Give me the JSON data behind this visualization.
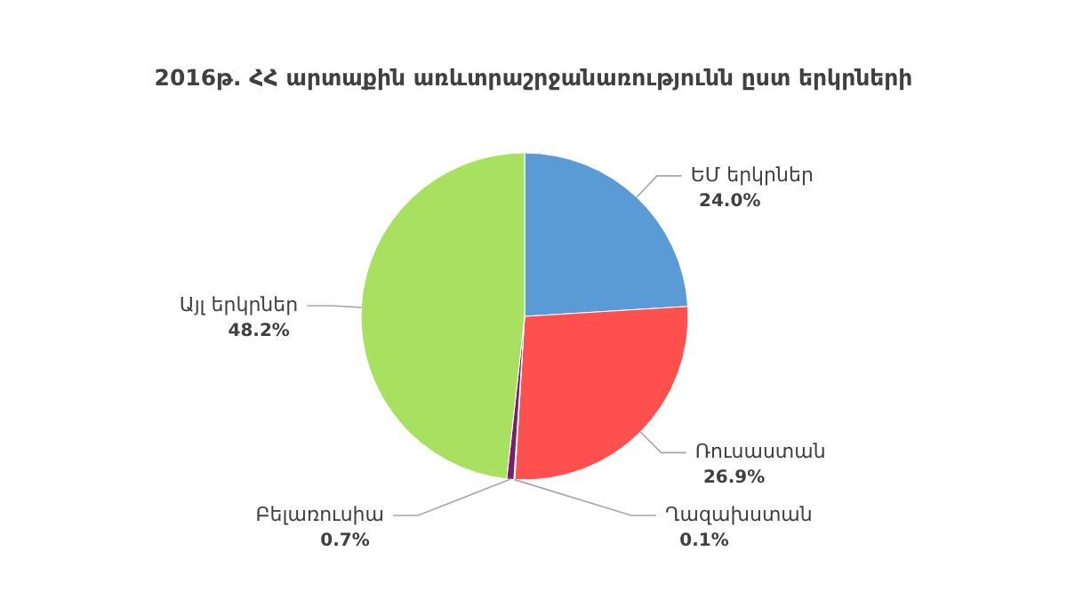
{
  "chart_data": {
    "type": "pie",
    "title": "2016թ. ՀՀ արտաքին առևտրաշրջանառությունն ըստ երկրների",
    "categories": [
      "ԵՄ երկրներ",
      "Ռուսաստան",
      "Ղազախստան",
      "Բելառուսիա",
      "Այլ երկրներ"
    ],
    "values": [
      24.0,
      26.9,
      0.1,
      0.7,
      48.2
    ],
    "value_labels": [
      "24.0%",
      "26.9%",
      "0.1%",
      "0.7%",
      "48.2%"
    ],
    "colors": [
      "#5b9bd5",
      "#ff5050",
      "#c9c9c9",
      "#7a1f6e",
      "#a8e05f"
    ]
  }
}
